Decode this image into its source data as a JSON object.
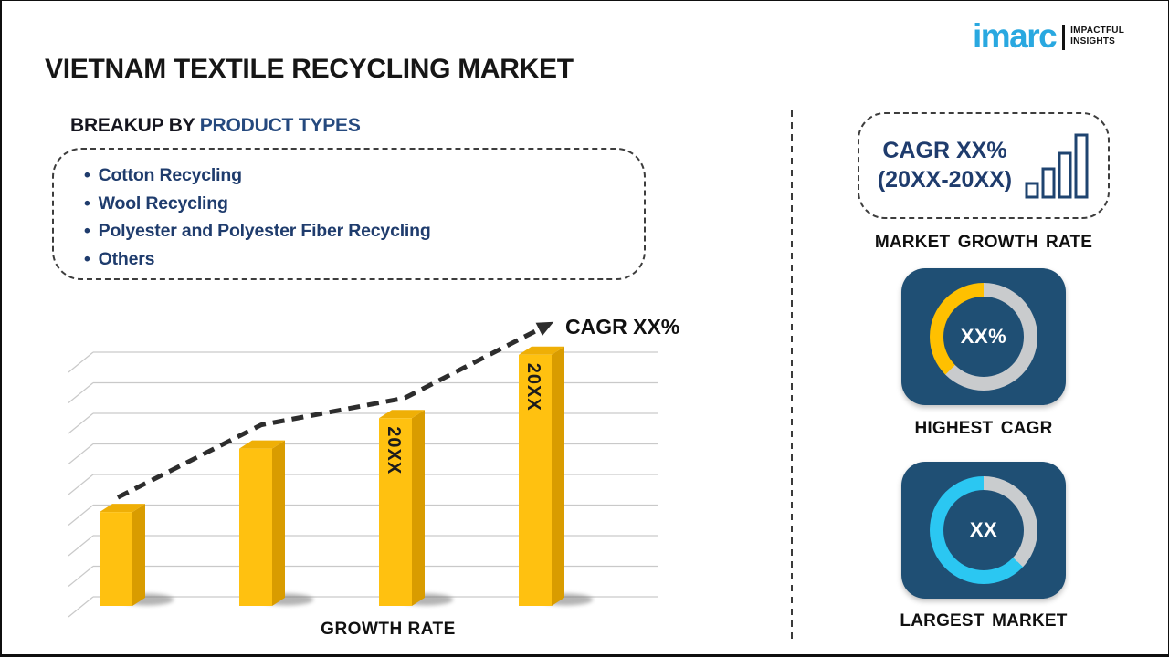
{
  "brand": {
    "wordmark": "imarc",
    "tagline_line1": "IMPACTFUL",
    "tagline_line2": "INSIGHTS",
    "logo_color": "#29A8E0"
  },
  "title": "VIETNAM TEXTILE RECYCLING MARKET",
  "breakup": {
    "heading_prefix": "BREAKUP BY ",
    "heading_highlight": "PRODUCT TYPES",
    "bullet": "•",
    "items": [
      "Cotton Recycling",
      "Wool Recycling",
      "Polyester and Polyester Fiber Recycling",
      "Others"
    ]
  },
  "chart_data": [
    {
      "type": "bar",
      "title": "",
      "xlabel": "GROWTH RATE",
      "ylabel": "",
      "categories": [
        "",
        "",
        "20XX",
        "20XX"
      ],
      "values": [
        37,
        62,
        74,
        99
      ],
      "ylim": [
        0,
        100
      ],
      "grid": true,
      "gridlines": 9,
      "trend_annotation": "CAGR XX%",
      "trend_style": "dashed-arrow-up",
      "bar_front_color": "#FFC110",
      "bar_side_color": "#D99C00",
      "bar_top_color": "#EFAF06"
    },
    {
      "type": "pie",
      "title": "HIGHEST CAGR",
      "center_value": "XX%",
      "segments": [
        {
          "name": "remainder",
          "color": "#C9CBCD",
          "from_deg": 0,
          "to_deg": 225
        },
        {
          "name": "highlighted-share",
          "color": "#FFC000",
          "from_deg": 225,
          "to_deg": 360
        }
      ]
    },
    {
      "type": "pie",
      "title": "LARGEST MARKET",
      "center_value": "XX",
      "segments": [
        {
          "name": "remainder",
          "color": "#C9CCCE",
          "from_deg": 0,
          "to_deg": 133
        },
        {
          "name": "highlighted-share",
          "color": "#2BC7F2",
          "from_deg": 133,
          "to_deg": 360
        }
      ]
    }
  ],
  "right_panel": {
    "cagr_box": {
      "line1": "CAGR XX%",
      "line2": "(20XX-20XX)"
    },
    "market_growth_rate_label": "MARKET GROWTH RATE",
    "highest_cagr_label": "HIGHEST CAGR",
    "largest_market_label": "LARGEST MARKET"
  },
  "colors": {
    "navy_text": "#1F3C6D",
    "heading_dark": "#15151F",
    "heading_blue": "#25497E",
    "card_blue": "#1F4F74",
    "ring_gray": "#C9CBCD",
    "accent_yellow": "#FFC000",
    "accent_cyan": "#2BC7F2",
    "trend_line": "#2D2D2D",
    "gridline": "#C9C9C9"
  }
}
